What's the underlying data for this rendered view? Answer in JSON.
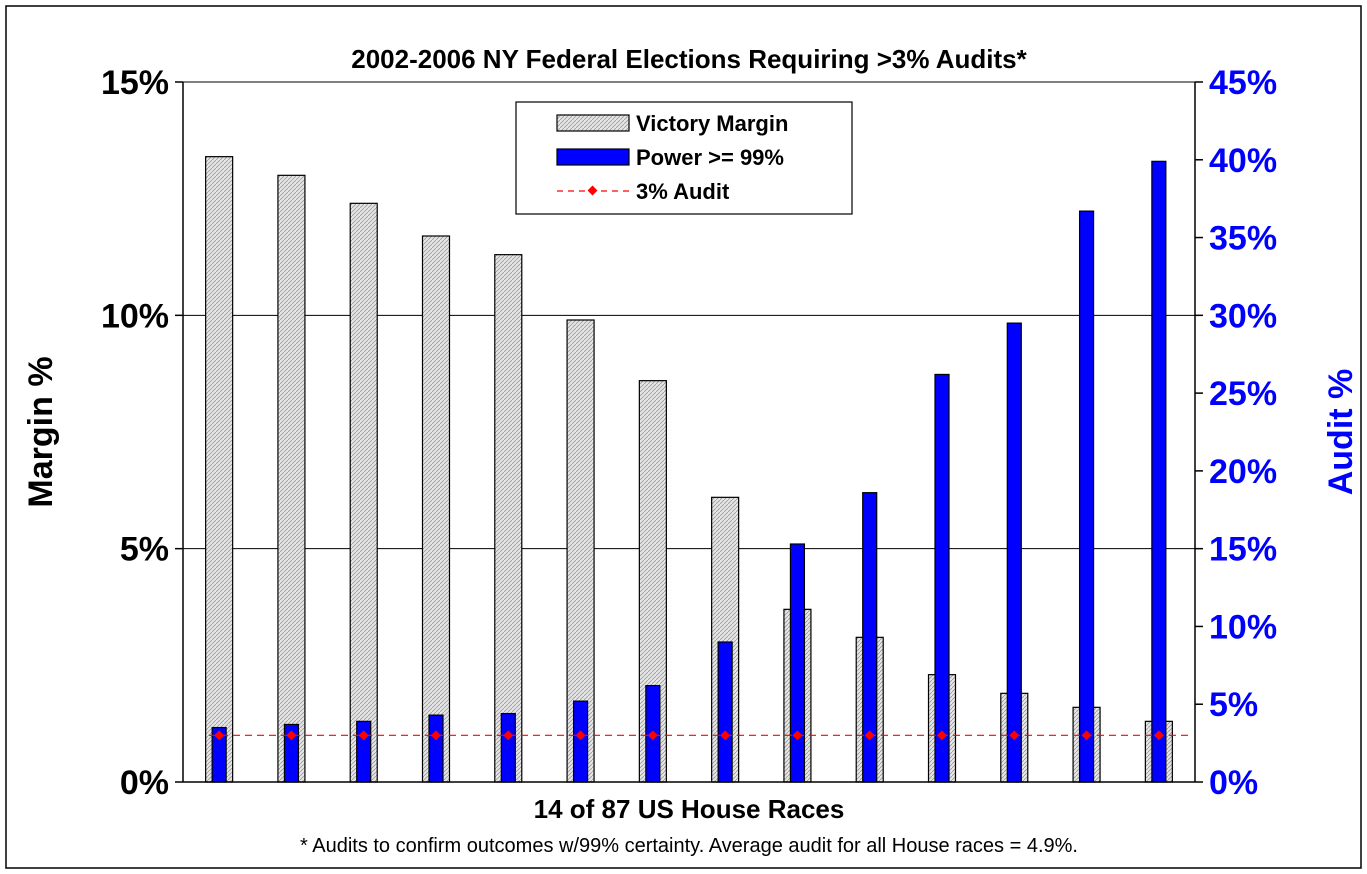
{
  "chart_data": {
    "type": "bar",
    "title": "2002-2006 NY Federal Elections Requiring >3% Audits*",
    "xlabel": "14 of 87 US House Races",
    "ylabel_left": "Margin %",
    "ylabel_right": "Audit %",
    "footnote": "* Audits to confirm outcomes w/99% certainty. Average audit for all House races = 4.9%.",
    "ylim_left": [
      0,
      15
    ],
    "ylim_right": [
      0,
      45
    ],
    "yticks_left": [
      "0%",
      "5%",
      "10%",
      "15%"
    ],
    "yticks_right": [
      "0%",
      "5%",
      "10%",
      "15%",
      "20%",
      "25%",
      "30%",
      "35%",
      "40%",
      "45%"
    ],
    "grid": true,
    "legend": {
      "placement": "top-center",
      "entries": [
        "Victory Margin",
        "Power >= 99%",
        "3% Audit"
      ]
    },
    "series": [
      {
        "name": "Victory Margin",
        "axis": "left",
        "color": "#d9d9d9",
        "values": [
          13.4,
          13.0,
          12.4,
          11.7,
          11.3,
          9.9,
          8.6,
          6.1,
          3.7,
          3.1,
          2.3,
          1.9,
          1.6,
          1.3
        ]
      },
      {
        "name": "Power >= 99%",
        "axis": "right",
        "color": "#0000ff",
        "values": [
          3.5,
          3.7,
          3.9,
          4.3,
          4.4,
          5.2,
          6.2,
          9.0,
          15.3,
          18.6,
          26.2,
          29.5,
          36.7,
          39.9
        ]
      },
      {
        "name": "3% Audit",
        "axis": "right",
        "color": "#ff0000",
        "values": [
          3,
          3,
          3,
          3,
          3,
          3,
          3,
          3,
          3,
          3,
          3,
          3,
          3,
          3
        ]
      }
    ]
  }
}
